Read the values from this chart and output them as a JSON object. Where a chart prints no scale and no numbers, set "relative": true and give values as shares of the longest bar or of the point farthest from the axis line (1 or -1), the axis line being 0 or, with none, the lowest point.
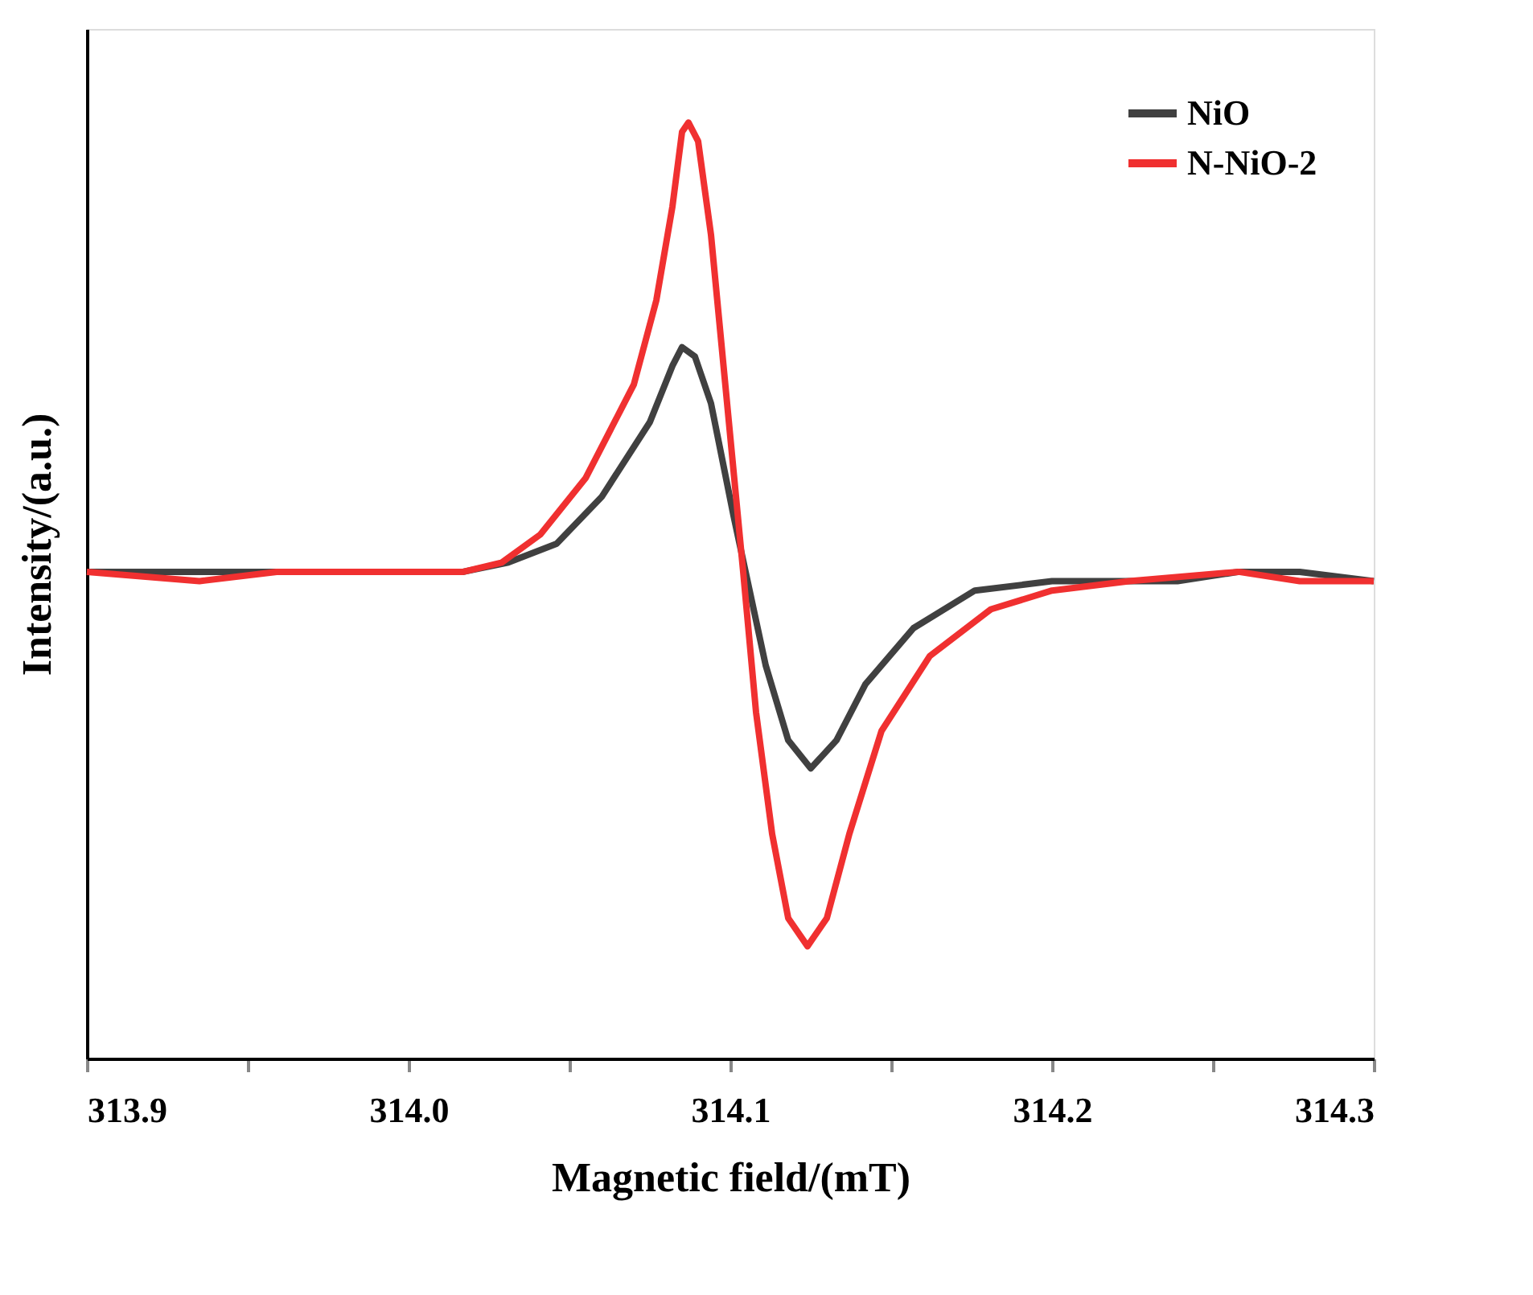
{
  "chart_data": {
    "type": "line",
    "relative": true,
    "xlabel": "Magnetic field/(mT)",
    "ylabel": "Intensity/(a.u.)",
    "xlim": [
      313.9,
      314.3
    ],
    "xticks": [
      313.9,
      {
        "value": 313.95,
        "label": null
      },
      {
        "value": 314.0,
        "label": "314.0"
      },
      {
        "value": 314.05,
        "label": null
      },
      314.1,
      {
        "value": 314.15,
        "label": null
      },
      314.2,
      {
        "value": 314.25,
        "label": null
      },
      314.3
    ],
    "tick_labels": "x",
    "grid": false,
    "legend": "top right",
    "marker": "none",
    "line_style": "solid",
    "series": [
      {
        "name": "NiO",
        "color": "#404040",
        "x": [
          313.9,
          313.935,
          313.959,
          313.993,
          314.017,
          314.031,
          314.046,
          314.06,
          314.075,
          314.082,
          314.085,
          314.089,
          314.094,
          314.101,
          314.106,
          314.111,
          314.118,
          314.125,
          314.133,
          314.142,
          314.157,
          314.176,
          314.2,
          314.239,
          314.258,
          314.277,
          314.3
        ],
        "values": [
          0.52,
          0.52,
          0.52,
          0.52,
          0.52,
          0.53,
          0.55,
          0.6,
          0.68,
          0.74,
          0.76,
          0.75,
          0.7,
          0.58,
          0.5,
          0.42,
          0.34,
          0.31,
          0.34,
          0.4,
          0.46,
          0.5,
          0.51,
          0.51,
          0.52,
          0.52,
          0.51
        ]
      },
      {
        "name": "N-NiO-2",
        "color": "#f03030",
        "x": [
          313.9,
          313.935,
          313.959,
          313.993,
          314.017,
          314.029,
          314.041,
          314.055,
          314.07,
          314.077,
          314.082,
          314.085,
          314.087,
          314.09,
          314.094,
          314.099,
          314.104,
          314.108,
          314.113,
          314.118,
          314.124,
          314.13,
          314.137,
          314.147,
          314.162,
          314.181,
          314.2,
          314.224,
          314.258,
          314.277,
          314.3
        ],
        "values": [
          0.52,
          0.51,
          0.52,
          0.52,
          0.52,
          0.53,
          0.56,
          0.62,
          0.72,
          0.81,
          0.91,
          0.99,
          1.0,
          0.98,
          0.88,
          0.7,
          0.52,
          0.37,
          0.24,
          0.15,
          0.12,
          0.15,
          0.24,
          0.35,
          0.43,
          0.48,
          0.5,
          0.51,
          0.52,
          0.51,
          0.51
        ]
      }
    ]
  }
}
